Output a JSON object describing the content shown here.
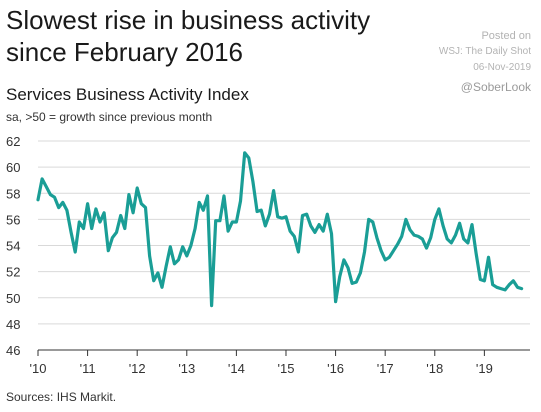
{
  "header": {
    "title": "Slowest rise in business activity since February 2016",
    "watermark": {
      "posted": "Posted on",
      "source": "WSJ: The Daily Shot",
      "date": "06-Nov-2019"
    },
    "handle": "@SoberLook"
  },
  "footer": {
    "source": "Sources: IHS Markit."
  },
  "chart_data": {
    "type": "line",
    "title": "Services Business Activity Index",
    "subtitle": "sa, >50 = growth since previous month",
    "xlabel": "",
    "ylabel": "",
    "xlim": [
      2010.0,
      2019.92
    ],
    "ylim": [
      46,
      62
    ],
    "yticks": [
      46,
      48,
      50,
      52,
      54,
      56,
      58,
      60,
      62
    ],
    "xticks": [
      {
        "value": 2010,
        "label": "'10"
      },
      {
        "value": 2011,
        "label": "'11"
      },
      {
        "value": 2012,
        "label": "'12"
      },
      {
        "value": 2013,
        "label": "'13"
      },
      {
        "value": 2014,
        "label": "'14"
      },
      {
        "value": 2015,
        "label": "'15"
      },
      {
        "value": 2016,
        "label": "'16"
      },
      {
        "value": 2017,
        "label": "'17"
      },
      {
        "value": 2018,
        "label": "'18"
      },
      {
        "value": 2019,
        "label": "'19"
      }
    ],
    "grid": "horizontal",
    "color": "#1a9e96",
    "series": [
      {
        "name": "",
        "x": [
          2010.0,
          2010.083,
          2010.167,
          2010.25,
          2010.333,
          2010.417,
          2010.5,
          2010.583,
          2010.667,
          2010.75,
          2010.833,
          2010.917,
          2011.0,
          2011.083,
          2011.167,
          2011.25,
          2011.333,
          2011.417,
          2011.5,
          2011.583,
          2011.667,
          2011.75,
          2011.833,
          2011.917,
          2012.0,
          2012.083,
          2012.167,
          2012.25,
          2012.333,
          2012.417,
          2012.5,
          2012.583,
          2012.667,
          2012.75,
          2012.833,
          2012.917,
          2013.0,
          2013.083,
          2013.167,
          2013.25,
          2013.333,
          2013.417,
          2013.5,
          2013.583,
          2013.667,
          2013.75,
          2013.833,
          2013.917,
          2014.0,
          2014.083,
          2014.167,
          2014.25,
          2014.333,
          2014.417,
          2014.5,
          2014.583,
          2014.667,
          2014.75,
          2014.833,
          2014.917,
          2015.0,
          2015.083,
          2015.167,
          2015.25,
          2015.333,
          2015.417,
          2015.5,
          2015.583,
          2015.667,
          2015.75,
          2015.833,
          2015.917,
          2016.0,
          2016.083,
          2016.167,
          2016.25,
          2016.333,
          2016.417,
          2016.5,
          2016.583,
          2016.667,
          2016.75,
          2016.833,
          2016.917,
          2017.0,
          2017.083,
          2017.167,
          2017.25,
          2017.333,
          2017.417,
          2017.5,
          2017.583,
          2017.667,
          2017.75,
          2017.833,
          2017.917,
          2018.0,
          2018.083,
          2018.167,
          2018.25,
          2018.333,
          2018.417,
          2018.5,
          2018.583,
          2018.667,
          2018.75,
          2018.833,
          2018.917,
          2019.0,
          2019.083,
          2019.167,
          2019.25,
          2019.333,
          2019.417,
          2019.5,
          2019.583,
          2019.667,
          2019.75
        ],
        "values": [
          57.5,
          59.1,
          58.5,
          57.9,
          57.7,
          56.9,
          57.3,
          56.7,
          55.0,
          53.5,
          55.8,
          55.3,
          57.2,
          55.3,
          56.8,
          55.8,
          56.5,
          53.6,
          54.6,
          55.0,
          56.3,
          55.3,
          57.9,
          56.5,
          58.4,
          57.2,
          56.9,
          53.2,
          51.3,
          51.9,
          50.8,
          52.4,
          53.9,
          52.6,
          52.9,
          53.9,
          53.2,
          54.0,
          55.3,
          57.3,
          56.7,
          57.8,
          49.4,
          55.9,
          55.9,
          57.8,
          55.1,
          55.8,
          55.8,
          57.4,
          61.1,
          60.7,
          58.9,
          56.6,
          56.7,
          55.5,
          56.4,
          58.2,
          56.2,
          56.1,
          56.2,
          55.1,
          54.7,
          53.5,
          56.3,
          56.4,
          55.5,
          55.0,
          55.6,
          55.1,
          56.4,
          54.9,
          49.7,
          51.6,
          52.9,
          52.3,
          51.1,
          51.2,
          51.9,
          53.5,
          56.0,
          55.8,
          54.6,
          53.6,
          52.9,
          53.1,
          53.6,
          54.1,
          54.7,
          56.0,
          55.2,
          54.8,
          54.7,
          54.5,
          53.8,
          54.6,
          56.0,
          56.8,
          55.5,
          54.5,
          54.2,
          54.8,
          55.7,
          54.5,
          54.2,
          55.6,
          53.4,
          51.4,
          51.3,
          53.1,
          51.0,
          50.8,
          50.7,
          50.6,
          51.0,
          51.3,
          50.8,
          50.7
        ]
      }
    ]
  }
}
